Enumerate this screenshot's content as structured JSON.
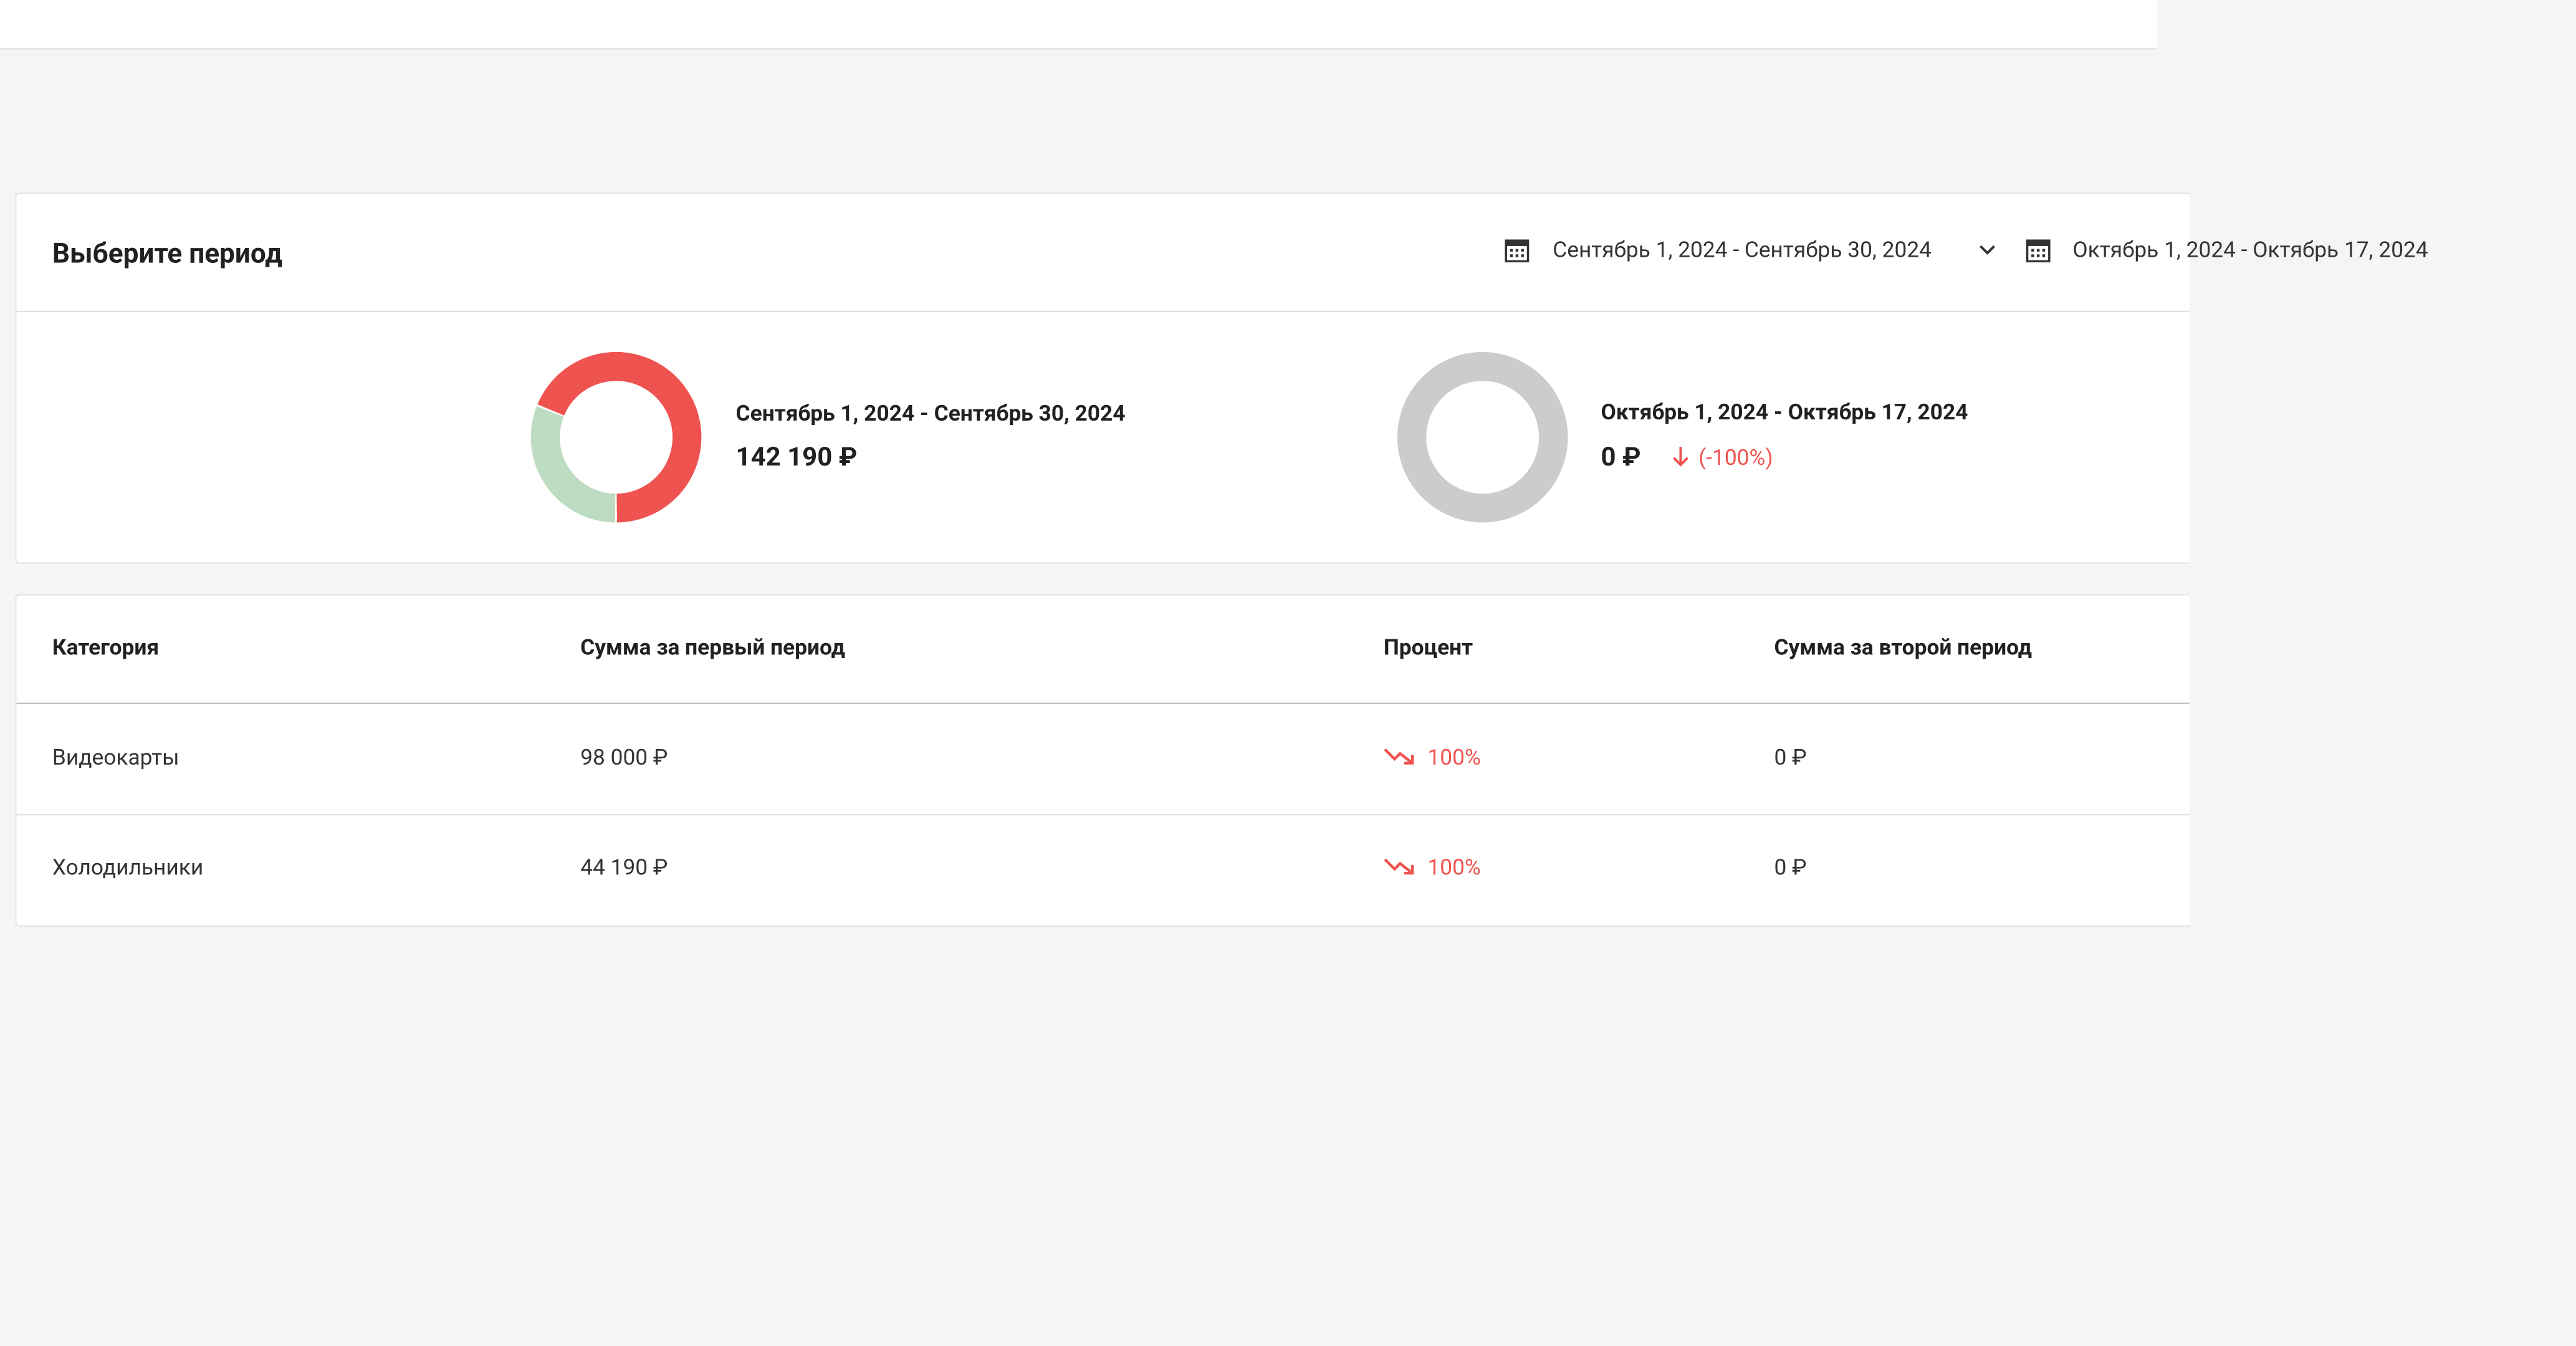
{
  "period_card": {
    "title": "Выберите период",
    "pickers": [
      "Сентябрь 1, 2024 - Сентябрь 30, 2024",
      "Октябрь 1, 2024 - Октябрь 17, 2024"
    ]
  },
  "summary": {
    "periods": [
      {
        "label": "Сентябрь 1, 2024 - Сентябрь 30, 2024",
        "total": "142 190 ₽",
        "segments": [
          {
            "value": 98000,
            "color": "#ef5350"
          },
          {
            "value": 44190,
            "color": "#bddcc1"
          }
        ]
      },
      {
        "label": "Октябрь 1, 2024 - Октябрь 17, 2024",
        "total": "0 ₽",
        "change": "(-100%)"
      }
    ]
  },
  "table": {
    "headers": [
      "Категория",
      "Сумма за первый период",
      "Процент",
      "Сумма за второй период"
    ],
    "rows": [
      [
        "Видеокарты",
        "98 000 ₽",
        "100%",
        "0 ₽"
      ],
      [
        "Холодильники",
        "44 190 ₽",
        "100%",
        "0 ₽"
      ]
    ]
  }
}
